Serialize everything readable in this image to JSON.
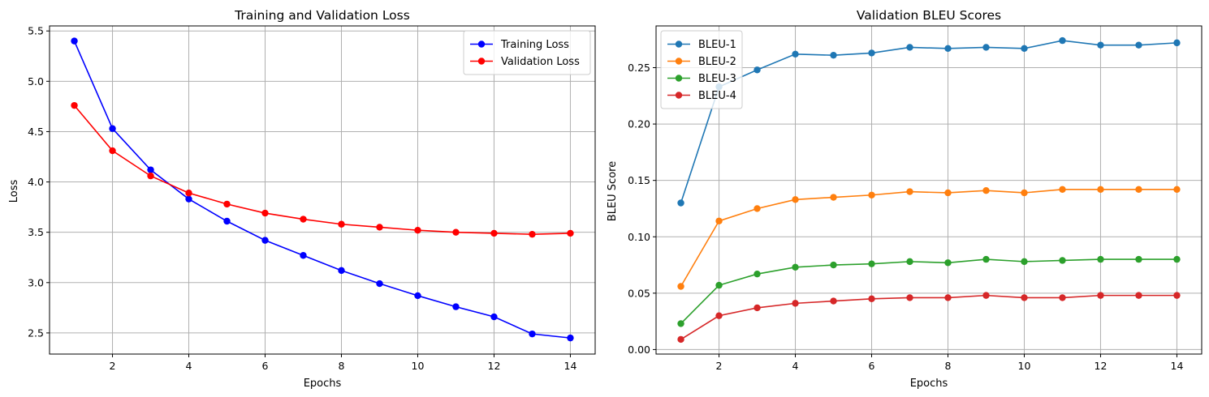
{
  "chart_data": [
    {
      "type": "line",
      "title": "Training and Validation Loss",
      "xlabel": "Epochs",
      "ylabel": "Loss",
      "xlim": [
        0.35,
        14.65
      ],
      "ylim": [
        2.29,
        5.55
      ],
      "xticks": [
        2,
        4,
        6,
        8,
        10,
        12,
        14
      ],
      "xtick_labels": [
        "2",
        "4",
        "6",
        "8",
        "10",
        "12",
        "14"
      ],
      "yticks": [
        2.5,
        3.0,
        3.5,
        4.0,
        4.5,
        5.0,
        5.5
      ],
      "ytick_labels": [
        "2.5",
        "3.0",
        "3.5",
        "4.0",
        "4.5",
        "5.0",
        "5.5"
      ],
      "grid": true,
      "legend_position": "upper right",
      "x": [
        1,
        2,
        3,
        4,
        5,
        6,
        7,
        8,
        9,
        10,
        11,
        12,
        13,
        14
      ],
      "series": [
        {
          "name": "Training Loss",
          "color": "#0000ff",
          "values": [
            5.4,
            4.53,
            4.12,
            3.83,
            3.61,
            3.42,
            3.27,
            3.12,
            2.99,
            2.87,
            2.76,
            2.66,
            2.49,
            2.45
          ]
        },
        {
          "name": "Validation Loss",
          "color": "#ff0000",
          "values": [
            4.76,
            4.31,
            4.06,
            3.89,
            3.78,
            3.69,
            3.63,
            3.58,
            3.55,
            3.52,
            3.5,
            3.49,
            3.48,
            3.49
          ]
        }
      ]
    },
    {
      "type": "line",
      "title": "Validation BLEU Scores",
      "xlabel": "Epochs",
      "ylabel": "BLEU Score",
      "xlim": [
        0.35,
        14.65
      ],
      "ylim": [
        -0.004,
        0.287
      ],
      "xticks": [
        2,
        4,
        6,
        8,
        10,
        12,
        14
      ],
      "xtick_labels": [
        "2",
        "4",
        "6",
        "8",
        "10",
        "12",
        "14"
      ],
      "yticks": [
        0.0,
        0.05,
        0.1,
        0.15,
        0.2,
        0.25
      ],
      "ytick_labels": [
        "0.00",
        "0.05",
        "0.10",
        "0.15",
        "0.20",
        "0.25"
      ],
      "grid": true,
      "legend_position": "upper left",
      "x": [
        1,
        2,
        3,
        4,
        5,
        6,
        7,
        8,
        9,
        10,
        11,
        12,
        13,
        14
      ],
      "series": [
        {
          "name": "BLEU-1",
          "color": "#1f77b4",
          "values": [
            0.13,
            0.233,
            0.248,
            0.262,
            0.261,
            0.263,
            0.268,
            0.267,
            0.268,
            0.267,
            0.274,
            0.27,
            0.27,
            0.272
          ]
        },
        {
          "name": "BLEU-2",
          "color": "#ff7f0e",
          "values": [
            0.056,
            0.114,
            0.125,
            0.133,
            0.135,
            0.137,
            0.14,
            0.139,
            0.141,
            0.139,
            0.142,
            0.142,
            0.142,
            0.142
          ]
        },
        {
          "name": "BLEU-3",
          "color": "#2ca02c",
          "values": [
            0.023,
            0.057,
            0.067,
            0.073,
            0.075,
            0.076,
            0.078,
            0.077,
            0.08,
            0.078,
            0.079,
            0.08,
            0.08,
            0.08
          ]
        },
        {
          "name": "BLEU-4",
          "color": "#d62728",
          "values": [
            0.009,
            0.03,
            0.037,
            0.041,
            0.043,
            0.045,
            0.046,
            0.046,
            0.048,
            0.046,
            0.046,
            0.048,
            0.048,
            0.048
          ]
        }
      ]
    }
  ]
}
